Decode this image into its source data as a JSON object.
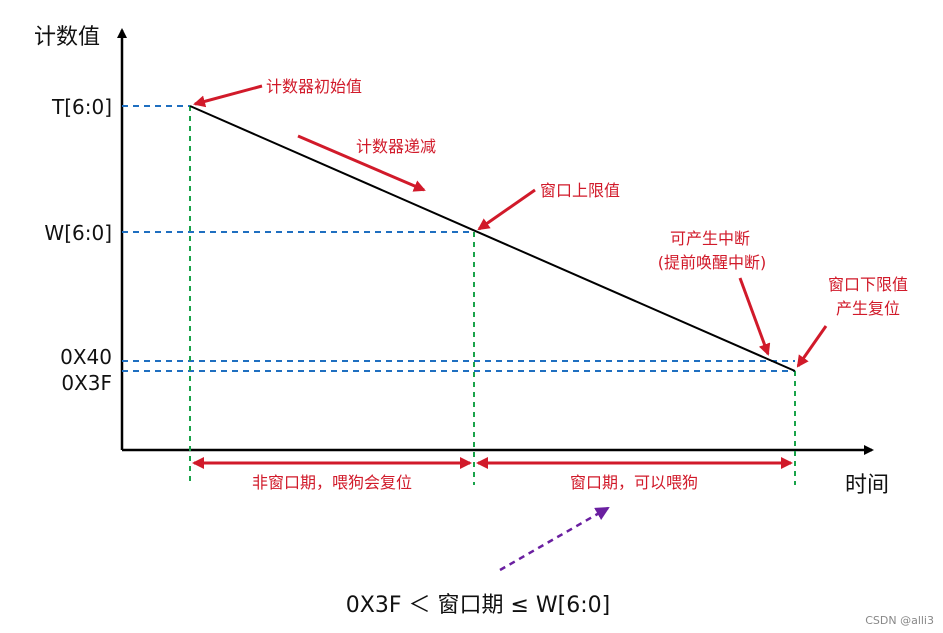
{
  "axes": {
    "y_title": "计数值",
    "x_title": "时间"
  },
  "y_levels": {
    "t": "T[6:0]",
    "w": "W[6:0]",
    "h40": "0X40",
    "h3f": "0X3F"
  },
  "annotations": {
    "initial": "计数器初始值",
    "decrement": "计数器递减",
    "upper": "窗口上限值",
    "early_wakeup_line1": "可产生中断",
    "early_wakeup_line2": "(提前唤醒中断)",
    "lower_line1": "窗口下限值",
    "lower_line2": "产生复位"
  },
  "spans": {
    "non_window": "非窗口期，喂狗会复位",
    "window": "窗口期，可以喂狗"
  },
  "formula": "0X3F ＜ 窗口期 ≤ W[6:0]",
  "watermark": "CSDN @alli3",
  "colors": {
    "axis": "#000000",
    "counter_line": "#000000",
    "blue_dash": "#1f6fc0",
    "green_dash": "#1aa34a",
    "red": "#d11a2a",
    "purple": "#6a1fa0"
  }
}
